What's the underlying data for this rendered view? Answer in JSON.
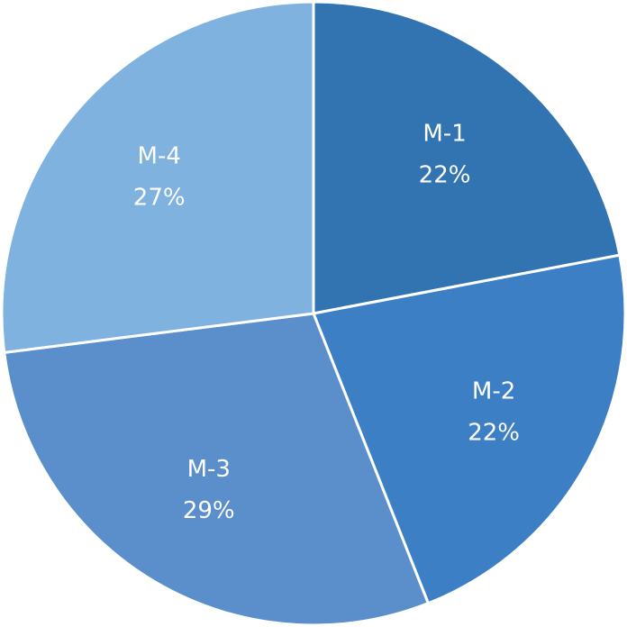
{
  "chart_data": {
    "type": "pie",
    "categories": [
      "M-1",
      "M-2",
      "M-3",
      "M-4"
    ],
    "values": [
      22,
      22,
      29,
      27
    ],
    "value_labels": [
      "22%",
      "22%",
      "29%",
      "27%"
    ],
    "colors": [
      "#3274b1",
      "#3c7fc4",
      "#5b8fcb",
      "#7fb2de"
    ]
  }
}
